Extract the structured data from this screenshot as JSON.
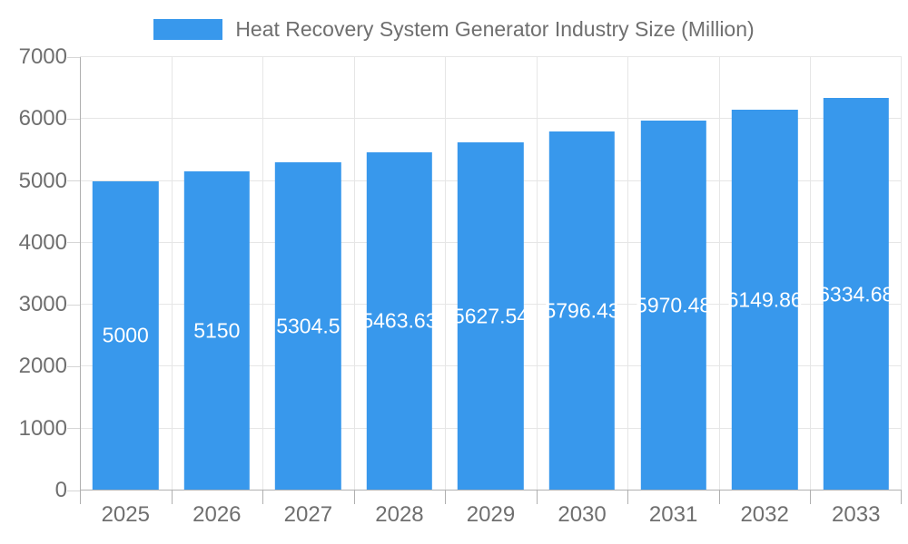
{
  "colors": {
    "bar": "#3898EC",
    "text": "#6f6f6f",
    "gridline": "#e6e6e6",
    "axis_line": "#b0b0b0",
    "y_tick": "#d6d6d6",
    "bar_label": "#ffffff",
    "background": "#ffffff"
  },
  "legend": {
    "label": "Heat Recovery System Generator Industry Size (Million)"
  },
  "chart_data": {
    "type": "bar",
    "title": "Heat Recovery System Generator Industry Size (Million)",
    "categories": [
      "2025",
      "2026",
      "2027",
      "2028",
      "2029",
      "2030",
      "2031",
      "2032",
      "2033"
    ],
    "values": [
      5000,
      5150,
      5304.5,
      5463.63,
      5627.54,
      5796.43,
      5970.48,
      6149.86,
      6334.68
    ],
    "bar_labels": [
      "5000",
      "5150",
      "5304.5",
      "5463.63",
      "5627.54",
      "5796.43",
      "5970.48",
      "6149.86",
      "6334.68"
    ],
    "xlabel": "",
    "ylabel": "",
    "ylim": [
      0,
      7000
    ],
    "yticks": [
      0,
      1000,
      2000,
      3000,
      4000,
      5000,
      6000,
      7000
    ],
    "grid": true,
    "legend_position": "top"
  }
}
